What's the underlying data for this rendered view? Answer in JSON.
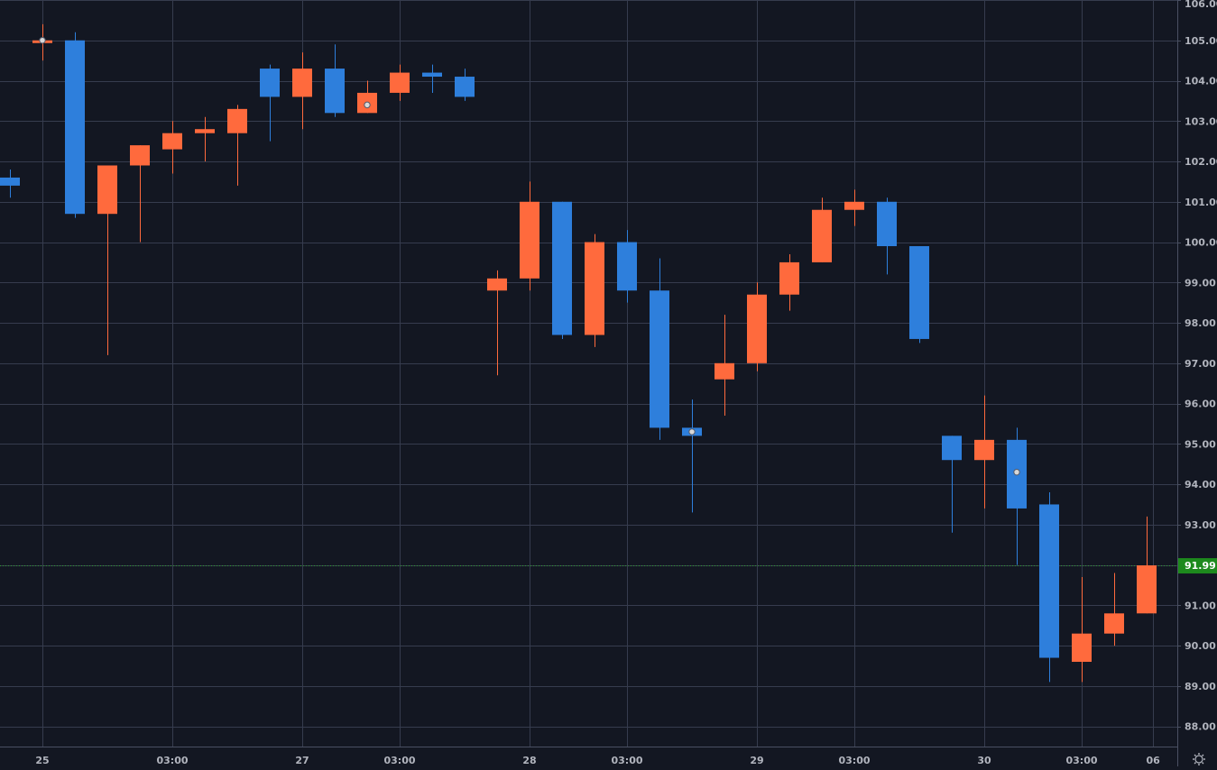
{
  "colors": {
    "background": "#131722",
    "grid": "#363c4e",
    "up": "#ff6a3d",
    "down": "#2e7fdc",
    "axis_text": "#b2b5be",
    "last_price_bg": "#1d8a1d",
    "last_price_line": "#2e9c2e",
    "marker": "#d8d8d8"
  },
  "icons": {
    "settings": "gear-icon"
  },
  "chart_data": {
    "type": "candlestick",
    "title": "",
    "xlabel": "",
    "ylabel": "",
    "ylim": [
      87.5,
      106.0
    ],
    "grid": true,
    "y_ticks": [
      88,
      89,
      90,
      91,
      92,
      93,
      94,
      95,
      96,
      97,
      98,
      99,
      100,
      101,
      102,
      103,
      104,
      105,
      106
    ],
    "y_tick_labels": [
      "88.00",
      "89.00",
      "90.00",
      "91.00",
      "92.00",
      "93.00",
      "94.00",
      "95.00",
      "96.00",
      "97.00",
      "98.00",
      "99.00",
      "100.00",
      "101.00",
      "102.00",
      "103.00",
      "104.00",
      "105.00",
      "106.00"
    ],
    "last_price": 91.99,
    "last_price_label": "91.99",
    "x_ticks": [
      {
        "i": 1.0,
        "label": "25"
      },
      {
        "i": 5.0,
        "label": "03:00"
      },
      {
        "i": 9.0,
        "label": "27"
      },
      {
        "i": 12.0,
        "label": "03:00"
      },
      {
        "i": 16.0,
        "label": "28"
      },
      {
        "i": 19.0,
        "label": "03:00"
      },
      {
        "i": 23.0,
        "label": "29"
      },
      {
        "i": 26.0,
        "label": "03:00"
      },
      {
        "i": 30.0,
        "label": "30"
      },
      {
        "i": 33.0,
        "label": "03:00"
      },
      {
        "i": 35.2,
        "label": "06"
      }
    ],
    "candles": [
      {
        "i": 0,
        "o": 101.6,
        "h": 101.8,
        "l": 101.1,
        "c": 101.4
      },
      {
        "i": 1,
        "o": 105.0,
        "h": 105.4,
        "l": 104.5,
        "c": 105.0
      },
      {
        "i": 2,
        "o": 105.0,
        "h": 105.2,
        "l": 100.6,
        "c": 100.7
      },
      {
        "i": 3,
        "o": 100.7,
        "h": 101.9,
        "l": 97.2,
        "c": 101.9
      },
      {
        "i": 4,
        "o": 101.9,
        "h": 102.4,
        "l": 100.0,
        "c": 102.4
      },
      {
        "i": 5,
        "o": 102.3,
        "h": 103.0,
        "l": 101.7,
        "c": 102.7
      },
      {
        "i": 6,
        "o": 102.7,
        "h": 103.1,
        "l": 102.0,
        "c": 102.8
      },
      {
        "i": 7,
        "o": 102.7,
        "h": 103.4,
        "l": 101.4,
        "c": 103.3
      },
      {
        "i": 8,
        "o": 104.3,
        "h": 104.4,
        "l": 102.5,
        "c": 103.6
      },
      {
        "i": 9,
        "o": 103.6,
        "h": 104.7,
        "l": 102.8,
        "c": 104.3
      },
      {
        "i": 10,
        "o": 104.3,
        "h": 104.9,
        "l": 103.1,
        "c": 103.2
      },
      {
        "i": 11,
        "o": 103.2,
        "h": 104.0,
        "l": 103.2,
        "c": 103.7
      },
      {
        "i": 12,
        "o": 103.7,
        "h": 104.4,
        "l": 103.5,
        "c": 104.2
      },
      {
        "i": 13,
        "o": 104.2,
        "h": 104.4,
        "l": 103.7,
        "c": 104.1
      },
      {
        "i": 14,
        "o": 104.1,
        "h": 104.3,
        "l": 103.5,
        "c": 103.6
      },
      {
        "i": 15,
        "o": 98.8,
        "h": 99.3,
        "l": 96.7,
        "c": 99.1
      },
      {
        "i": 16,
        "o": 99.1,
        "h": 101.5,
        "l": 98.8,
        "c": 101.0
      },
      {
        "i": 17,
        "o": 101.0,
        "h": 101.0,
        "l": 97.6,
        "c": 97.7
      },
      {
        "i": 18,
        "o": 97.7,
        "h": 100.2,
        "l": 97.4,
        "c": 100.0
      },
      {
        "i": 19,
        "o": 100.0,
        "h": 100.3,
        "l": 98.5,
        "c": 98.8
      },
      {
        "i": 20,
        "o": 98.8,
        "h": 99.6,
        "l": 95.1,
        "c": 95.4
      },
      {
        "i": 21,
        "o": 95.4,
        "h": 96.1,
        "l": 93.3,
        "c": 95.2
      },
      {
        "i": 22,
        "o": 96.6,
        "h": 98.2,
        "l": 95.7,
        "c": 97.0
      },
      {
        "i": 23,
        "o": 97.0,
        "h": 99.0,
        "l": 96.8,
        "c": 98.7
      },
      {
        "i": 24,
        "o": 98.7,
        "h": 99.7,
        "l": 98.3,
        "c": 99.5
      },
      {
        "i": 25,
        "o": 99.5,
        "h": 101.1,
        "l": 99.5,
        "c": 100.8
      },
      {
        "i": 26,
        "o": 100.8,
        "h": 101.3,
        "l": 100.4,
        "c": 101.0
      },
      {
        "i": 27,
        "o": 101.0,
        "h": 101.1,
        "l": 99.2,
        "c": 99.9
      },
      {
        "i": 28,
        "o": 99.9,
        "h": 99.9,
        "l": 97.5,
        "c": 97.6
      },
      {
        "i": 29,
        "o": 95.2,
        "h": 95.2,
        "l": 92.8,
        "c": 94.6
      },
      {
        "i": 30,
        "o": 94.6,
        "h": 96.2,
        "l": 93.4,
        "c": 95.1
      },
      {
        "i": 31,
        "o": 95.1,
        "h": 95.4,
        "l": 92.0,
        "c": 93.4
      },
      {
        "i": 32,
        "o": 93.5,
        "h": 93.8,
        "l": 89.1,
        "c": 89.7
      },
      {
        "i": 33,
        "o": 89.6,
        "h": 91.7,
        "l": 89.1,
        "c": 90.3
      },
      {
        "i": 34,
        "o": 90.3,
        "h": 91.8,
        "l": 90.0,
        "c": 90.8
      },
      {
        "i": 35,
        "o": 90.8,
        "h": 93.2,
        "l": 90.8,
        "c": 91.99
      }
    ],
    "markers": [
      {
        "i": 1,
        "price": 105.0
      },
      {
        "i": 11,
        "price": 103.4
      },
      {
        "i": 21,
        "price": 95.3
      },
      {
        "i": 31,
        "price": 94.3
      }
    ]
  }
}
